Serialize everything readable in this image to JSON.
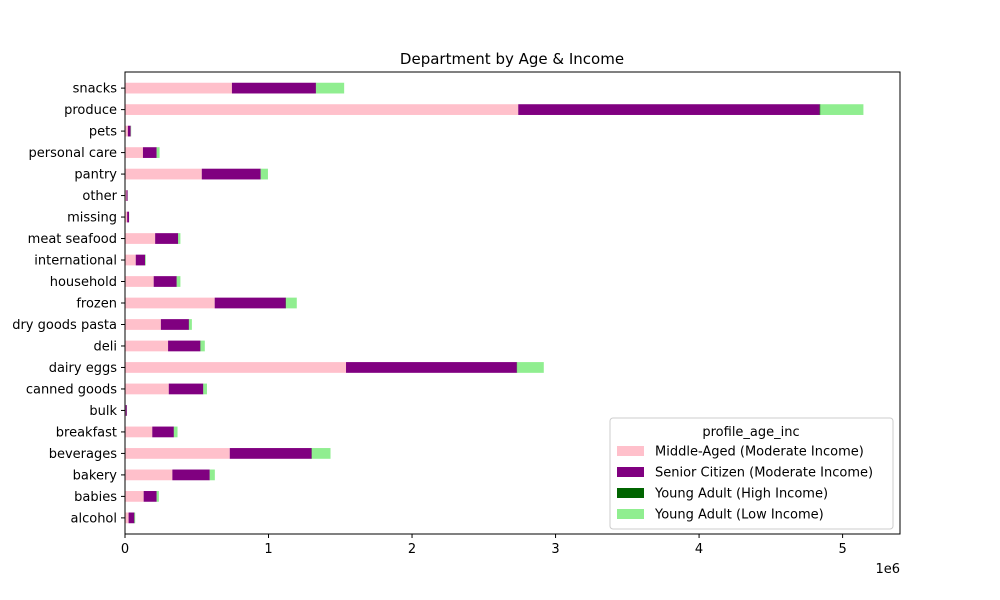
{
  "chart_data": {
    "type": "bar",
    "orientation": "horizontal",
    "stacked": true,
    "title": "Department by Age & Income",
    "xlabel": "",
    "ylabel": "",
    "x_offset_label": "1e6",
    "xlim": [
      0,
      5400000
    ],
    "x_ticks": [
      0,
      1000000,
      2000000,
      3000000,
      4000000,
      5000000
    ],
    "x_tick_labels": [
      "0",
      "1",
      "2",
      "3",
      "4",
      "5"
    ],
    "grid": false,
    "legend_title": "profile_age_inc",
    "legend_position": "lower-right",
    "categories": [
      "alcohol",
      "babies",
      "bakery",
      "beverages",
      "breakfast",
      "bulk",
      "canned goods",
      "dairy eggs",
      "deli",
      "dry goods pasta",
      "frozen",
      "household",
      "international",
      "meat seafood",
      "missing",
      "other",
      "pantry",
      "personal care",
      "pets",
      "produce",
      "snacks"
    ],
    "series": [
      {
        "name": "Middle-Aged (Moderate Income)",
        "color": "#ffc0cb",
        "values": [
          25000,
          130000,
          330000,
          730000,
          190000,
          5000,
          305000,
          1540000,
          300000,
          250000,
          625000,
          200000,
          75000,
          210000,
          15000,
          10000,
          535000,
          125000,
          20000,
          2740000,
          745000
        ]
      },
      {
        "name": "Senior Citizen (Moderate Income)",
        "color": "#800080",
        "values": [
          40000,
          90000,
          260000,
          570000,
          150000,
          8000,
          240000,
          1190000,
          225000,
          195000,
          495000,
          160000,
          65000,
          160000,
          13000,
          8000,
          410000,
          95000,
          20000,
          2100000,
          585000
        ]
      },
      {
        "name": "Young Adult (High Income)",
        "color": "#006400",
        "values": [
          1000,
          1000,
          1000,
          2000,
          1000,
          100,
          1000,
          3000,
          1000,
          1000,
          2000,
          1000,
          300,
          1000,
          100,
          100,
          1000,
          1000,
          100,
          5000,
          2000
        ]
      },
      {
        "name": "Young Adult (Low Income)",
        "color": "#90ee90",
        "values": [
          5000,
          15000,
          35000,
          130000,
          25000,
          1000,
          25000,
          185000,
          30000,
          20000,
          75000,
          25000,
          5000,
          15000,
          1000,
          1000,
          50000,
          20000,
          3000,
          300000,
          195000
        ]
      }
    ]
  }
}
